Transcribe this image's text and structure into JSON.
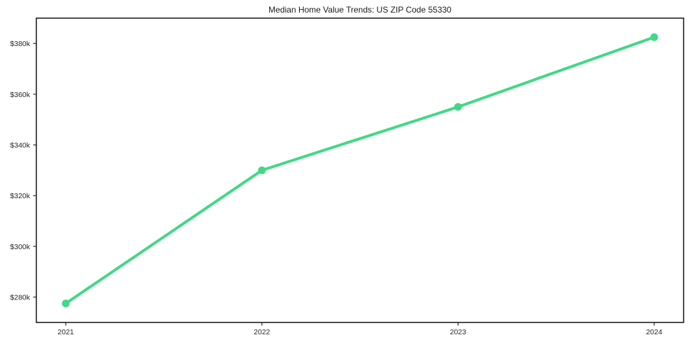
{
  "chart_data": {
    "type": "line",
    "title": "Median Home Value Trends: US ZIP Code 55330",
    "xlabel": "",
    "ylabel": "",
    "x": [
      2021,
      2022,
      2023,
      2024
    ],
    "x_tick_labels": [
      "2021",
      "2022",
      "2023",
      "2024"
    ],
    "series": [
      {
        "name": "Median Home Value",
        "values": [
          277500,
          330000,
          355000,
          382500
        ]
      }
    ],
    "y_ticks": [
      {
        "value": 280000,
        "label": "$280k"
      },
      {
        "value": 300000,
        "label": "$300k"
      },
      {
        "value": 320000,
        "label": "$320k"
      },
      {
        "value": 340000,
        "label": "$340k"
      },
      {
        "value": 360000,
        "label": "$360k"
      },
      {
        "value": 380000,
        "label": "$380k"
      }
    ],
    "ylim": [
      270000,
      390000
    ],
    "xlim": [
      2020.85,
      2024.15
    ],
    "grid": false,
    "legend": "none"
  },
  "colors": {
    "line": "#42d885",
    "marker": "#42d885",
    "spine": "#000000",
    "tick": "#262626",
    "text": "#262626",
    "background": "#ffffff"
  }
}
